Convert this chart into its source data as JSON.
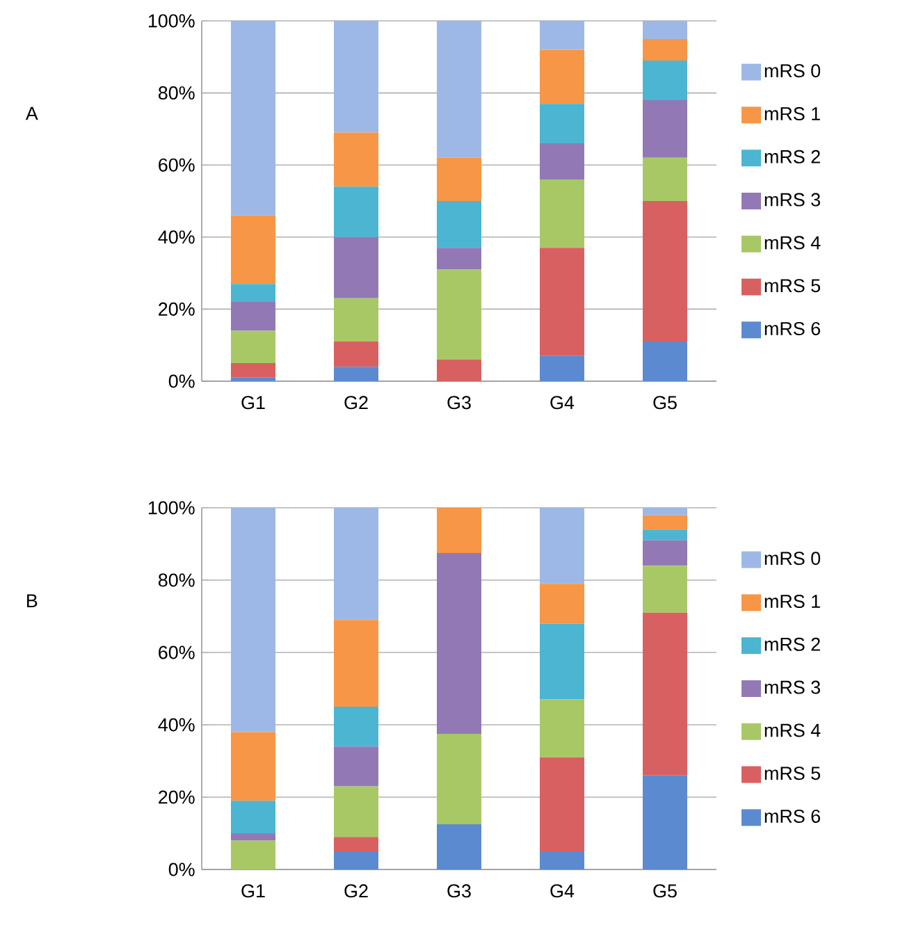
{
  "chart_data": [
    {
      "type": "bar",
      "title": "A",
      "stacked": true,
      "categories": [
        "G1",
        "G2",
        "G3",
        "G4",
        "G5"
      ],
      "ylim": [
        0,
        100
      ],
      "yticks": [
        {
          "value": 0,
          "label": "0%"
        },
        {
          "value": 20,
          "label": "20%"
        },
        {
          "value": 40,
          "label": "40%"
        },
        {
          "value": 60,
          "label": "60%"
        },
        {
          "value": 80,
          "label": "80%"
        },
        {
          "value": 100,
          "label": "100%"
        }
      ],
      "grid": "y",
      "legend": "right",
      "series": [
        {
          "name": "mRS 6",
          "color": "#5b8ad0",
          "values": [
            1,
            4,
            0,
            7,
            11
          ]
        },
        {
          "name": "mRS 5",
          "color": "#d96060",
          "values": [
            4,
            7,
            6,
            30,
            39
          ]
        },
        {
          "name": "mRS 4",
          "color": "#a8c866",
          "values": [
            9,
            12,
            25,
            19,
            12
          ]
        },
        {
          "name": "mRS 3",
          "color": "#9279b5",
          "values": [
            8,
            17,
            6,
            10,
            16
          ]
        },
        {
          "name": "mRS 2",
          "color": "#4bb5d2",
          "values": [
            5,
            14,
            13,
            11,
            11
          ]
        },
        {
          "name": "mRS 1",
          "color": "#f79646",
          "values": [
            19,
            15,
            12,
            15,
            6
          ]
        },
        {
          "name": "mRS 0",
          "color": "#9db8e6",
          "values": [
            54,
            31,
            38,
            8,
            5
          ]
        }
      ]
    },
    {
      "type": "bar",
      "title": "B",
      "stacked": true,
      "categories": [
        "G1",
        "G2",
        "G3",
        "G4",
        "G5"
      ],
      "ylim": [
        0,
        100
      ],
      "yticks": [
        {
          "value": 0,
          "label": "0%"
        },
        {
          "value": 20,
          "label": "20%"
        },
        {
          "value": 40,
          "label": "40%"
        },
        {
          "value": 60,
          "label": "60%"
        },
        {
          "value": 80,
          "label": "80%"
        },
        {
          "value": 100,
          "label": "100%"
        }
      ],
      "grid": "y",
      "legend": "right",
      "series": [
        {
          "name": "mRS 6",
          "color": "#5b8ad0",
          "values": [
            0,
            5,
            12.5,
            5,
            26
          ]
        },
        {
          "name": "mRS 5",
          "color": "#d96060",
          "values": [
            0,
            4,
            0,
            26,
            45
          ]
        },
        {
          "name": "mRS 4",
          "color": "#a8c866",
          "values": [
            8,
            14,
            25,
            16,
            13
          ]
        },
        {
          "name": "mRS 3",
          "color": "#9279b5",
          "values": [
            2,
            11,
            50,
            0,
            7
          ]
        },
        {
          "name": "mRS 2",
          "color": "#4bb5d2",
          "values": [
            9,
            11,
            0,
            21,
            3
          ]
        },
        {
          "name": "mRS 1",
          "color": "#f79646",
          "values": [
            19,
            24,
            12.5,
            11,
            4
          ]
        },
        {
          "name": "mRS 0",
          "color": "#9db8e6",
          "values": [
            62,
            31,
            0,
            21,
            2
          ]
        }
      ]
    }
  ]
}
